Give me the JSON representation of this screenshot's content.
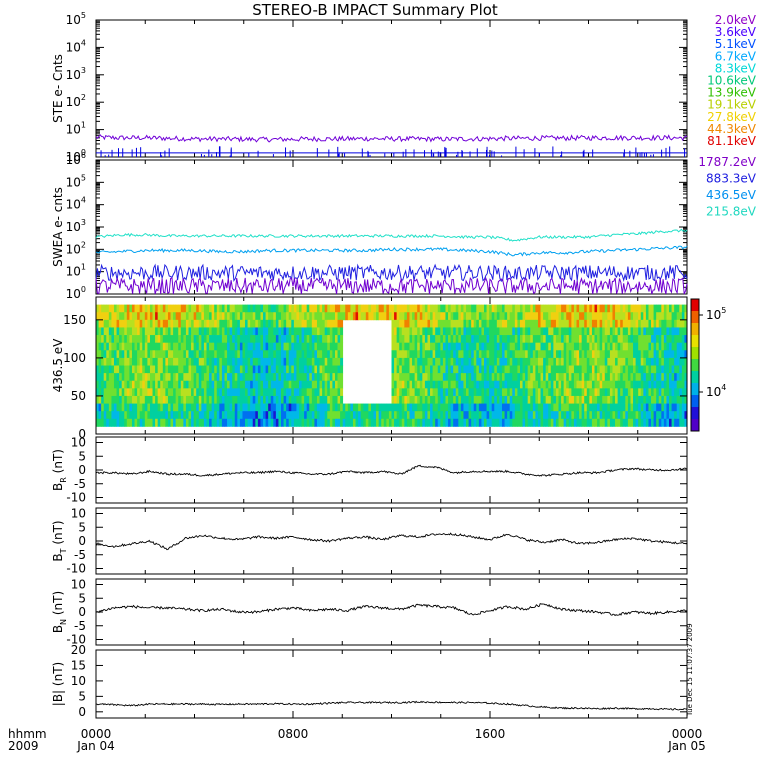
{
  "chart_data": {
    "type": "line",
    "title": "STEREO-B IMPACT Summary Plot",
    "time_axis": {
      "row_label_top": "hhmm",
      "row_label_bottom": "2009",
      "ticks": [
        {
          "t": 0,
          "top": "0000",
          "bottom": "Jan 04"
        },
        {
          "t": 8,
          "top": "0800",
          "bottom": ""
        },
        {
          "t": 16,
          "top": "1600",
          "bottom": ""
        },
        {
          "t": 24,
          "top": "0000",
          "bottom": "Jan 05"
        }
      ],
      "range_hours": [
        0,
        24
      ]
    },
    "timestamp": "Tue Dec 15 11:07:37 2009",
    "panels": {
      "ste": {
        "ylabel": "STE e- Cnts",
        "scale": "log",
        "ylim_exp": [
          0,
          5
        ],
        "ytick_exps": [
          0,
          1,
          2,
          3,
          4,
          5
        ],
        "legend": [
          {
            "label": "2.0keV",
            "color": "#9000c8"
          },
          {
            "label": "3.6keV",
            "color": "#4a00ff"
          },
          {
            "label": "5.1keV",
            "color": "#0050ff"
          },
          {
            "label": "6.7keV",
            "color": "#00a8ff"
          },
          {
            "label": "8.3keV",
            "color": "#00d8d8"
          },
          {
            "label": "10.6keV",
            "color": "#00c878"
          },
          {
            "label": "13.9keV",
            "color": "#30c000"
          },
          {
            "label": "19.1keV",
            "color": "#b8d000"
          },
          {
            "label": "27.8keV",
            "color": "#f0d000"
          },
          {
            "label": "44.3keV",
            "color": "#f08800"
          },
          {
            "label": "81.1keV",
            "color": "#e00000"
          }
        ],
        "series": [
          {
            "color": "#7000d8",
            "values": [
              0.72,
              0.7,
              0.7,
              0.68,
              0.66,
              0.66,
              0.65,
              0.64,
              0.65,
              0.66,
              0.66,
              0.67,
              0.66,
              0.66,
              0.65,
              0.66,
              0.67,
              0.68,
              0.69,
              0.69,
              0.7,
              0.7,
              0.7,
              0.7,
              0.7
            ]
          },
          {
            "color": "#0000e0",
            "values": [
              0.15,
              0.15,
              0.15,
              0.15,
              0.15,
              0.15,
              0.15,
              0.15,
              0.15,
              0.15,
              0.15,
              0.15,
              0.15,
              0.15,
              0.15,
              0.15,
              0.15,
              0.15,
              0.15,
              0.15,
              0.15,
              0.15,
              0.15,
              0.15,
              0.15
            ]
          }
        ]
      },
      "swea": {
        "ylabel": "SWEA e- cnts",
        "scale": "log",
        "ylim_exp": [
          0,
          6
        ],
        "ytick_exps": [
          0,
          1,
          2,
          3,
          4,
          5,
          6
        ],
        "legend": [
          {
            "label": "1787.2eV",
            "color": "#8000c8"
          },
          {
            "label": "883.3eV",
            "color": "#2020e0"
          },
          {
            "label": "436.5eV",
            "color": "#0090f0"
          },
          {
            "label": "215.8eV",
            "color": "#20d8c0"
          }
        ],
        "series": [
          {
            "name": "215.8eV",
            "color": "#20e0c8",
            "values": [
              2.55,
              2.65,
              2.65,
              2.6,
              2.6,
              2.6,
              2.6,
              2.6,
              2.6,
              2.6,
              2.6,
              2.6,
              2.6,
              2.6,
              2.6,
              2.55,
              2.55,
              2.4,
              2.55,
              2.55,
              2.55,
              2.65,
              2.7,
              2.8,
              2.85
            ]
          },
          {
            "name": "436.5eV",
            "color": "#00a0f0",
            "values": [
              1.85,
              1.9,
              1.95,
              1.95,
              1.95,
              1.9,
              1.9,
              1.95,
              1.95,
              1.95,
              1.95,
              1.95,
              2.0,
              2.0,
              2.0,
              1.95,
              1.9,
              1.75,
              1.85,
              1.85,
              1.9,
              1.95,
              2.0,
              2.05,
              2.1
            ]
          },
          {
            "name": "883.3eV",
            "color": "#2020e0",
            "values": [
              0.95,
              0.95,
              0.95,
              0.95,
              0.95,
              0.95,
              0.95,
              0.95,
              0.95,
              0.95,
              0.95,
              0.95,
              0.95,
              0.95,
              0.95,
              0.95,
              0.95,
              0.9,
              0.95,
              0.95,
              0.95,
              0.95,
              0.95,
              0.95,
              0.95
            ]
          },
          {
            "name": "1787.2eV",
            "color": "#7000d0",
            "values": [
              0.35,
              0.35,
              0.35,
              0.35,
              0.35,
              0.35,
              0.35,
              0.35,
              0.35,
              0.35,
              0.35,
              0.35,
              0.35,
              0.35,
              0.35,
              0.35,
              0.35,
              0.35,
              0.35,
              0.35,
              0.35,
              0.35,
              0.35,
              0.35,
              0.35
            ]
          }
        ]
      },
      "pad": {
        "type": "heatmap",
        "ylabel": "436.5 eV",
        "ylim": [
          0,
          180
        ],
        "yticks": [
          0,
          50,
          100,
          150
        ],
        "data_range": [
          10,
          170
        ],
        "colorbar": {
          "scale": "log",
          "ticks": [
            {
              "label": "10",
              "exp": "5"
            },
            {
              "label": "10",
              "exp": "4"
            }
          ]
        }
      },
      "br": {
        "label": "B",
        "sub": "R",
        "unit": " (nT)",
        "ylim": [
          -12,
          12
        ],
        "yticks": [
          -10,
          -5,
          0,
          5,
          10
        ],
        "values": [
          -1,
          -1,
          -1.5,
          -0.5,
          -1.5,
          -1.5,
          -2,
          -1.5,
          -1,
          -1,
          -0.5,
          -1,
          -1.5,
          -1.5,
          -0.5,
          -1,
          -0.5,
          -1.5,
          1.5,
          1,
          -1,
          -0.5,
          -0.5,
          -0.5,
          -1.5,
          -2,
          -1.5,
          -1,
          -1,
          0,
          0.5,
          0,
          0,
          0.5
        ]
      },
      "bt": {
        "label": "B",
        "sub": "T",
        "unit": " (nT)",
        "ylim": [
          -12,
          12
        ],
        "yticks": [
          -10,
          -5,
          0,
          5,
          10
        ],
        "values": [
          -1,
          -2,
          -1,
          0,
          -3,
          1,
          2,
          1,
          0.5,
          1.5,
          1,
          1.5,
          0.5,
          0,
          1,
          1.5,
          0.5,
          2,
          1.5,
          2.5,
          2.5,
          1.5,
          0.5,
          2.5,
          0.5,
          -0.5,
          0.5,
          -1,
          -0.5,
          0.5,
          1,
          0,
          -0.5,
          -1
        ]
      },
      "bn": {
        "label": "B",
        "sub": "N",
        "unit": " (nT)",
        "ylim": [
          -12,
          12
        ],
        "yticks": [
          -10,
          -5,
          0,
          5,
          10
        ],
        "values": [
          0,
          1.5,
          2,
          1.5,
          1.5,
          1,
          0.5,
          1,
          0,
          0,
          1,
          1.5,
          0.5,
          1,
          0.5,
          2,
          1.5,
          1,
          2.5,
          2,
          1.5,
          -1,
          0.5,
          2,
          1,
          3,
          1,
          0.5,
          0,
          -1,
          0,
          -0.5,
          0,
          0.5
        ]
      },
      "bmag": {
        "label": "|B|",
        "sub": "",
        "unit": " (nT)",
        "ylim": [
          -2,
          20
        ],
        "yticks": [
          0,
          5,
          10,
          15,
          20
        ],
        "values": [
          2.5,
          2.3,
          2,
          2.5,
          2.5,
          2.5,
          2.5,
          2.4,
          2.5,
          2.5,
          2.6,
          2.5,
          2.5,
          2.8,
          3,
          3,
          3,
          3,
          3.2,
          3.1,
          3,
          3,
          2.8,
          2.5,
          2,
          1.5,
          1.2,
          1.2,
          1,
          1.2,
          1,
          1,
          0.8,
          0.8
        ]
      }
    }
  }
}
